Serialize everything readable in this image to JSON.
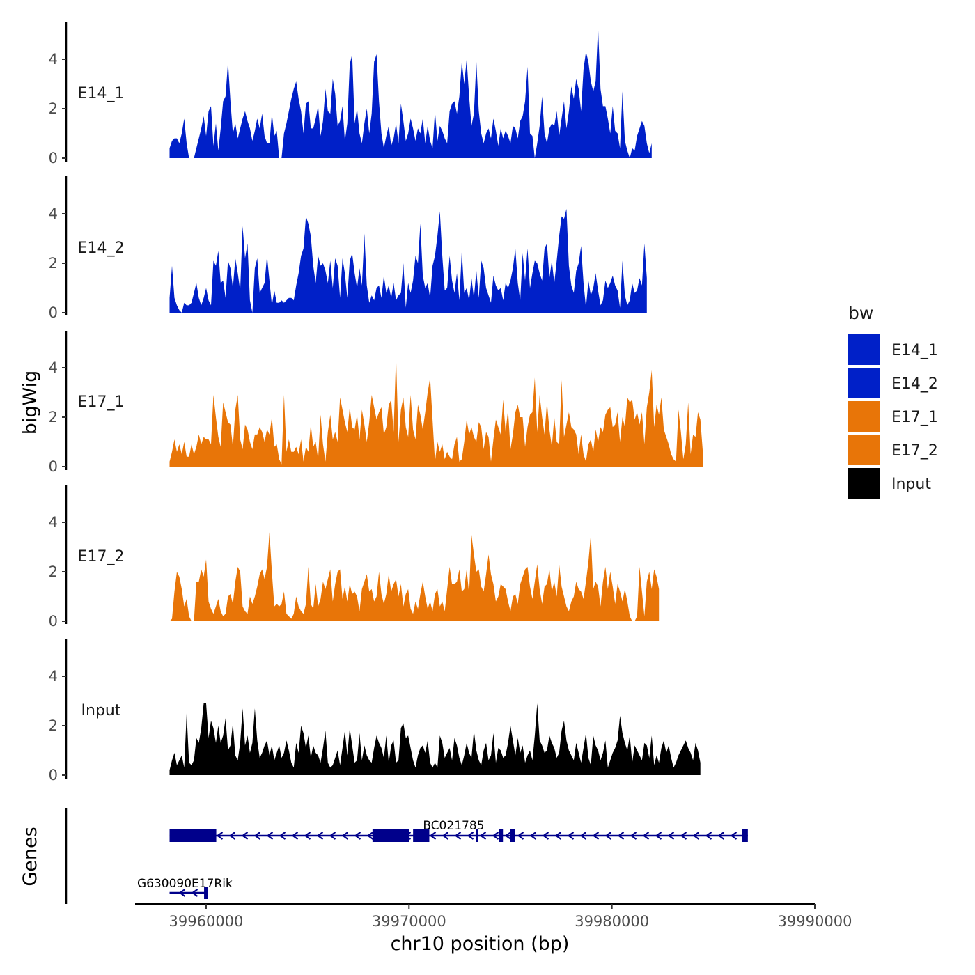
{
  "chart_data": {
    "type": "area",
    "title": "",
    "xlabel": "chr10 position (bp)",
    "ylabel": "bigWig",
    "genes_label": "Genes",
    "xlim": [
      39956500,
      39990000
    ],
    "data_range": [
      39958200,
      39988700
    ],
    "x_ticks": [
      {
        "value": 39960000,
        "label": "39960000"
      },
      {
        "value": 39970000,
        "label": "39970000"
      },
      {
        "value": 39980000,
        "label": "39980000"
      },
      {
        "value": 39990000,
        "label": "39990000"
      }
    ],
    "ylim": [
      0,
      5.4
    ],
    "y_ticks": [
      {
        "value": 0,
        "label": "0"
      },
      {
        "value": 2,
        "label": "2"
      },
      {
        "value": 4,
        "label": "4"
      }
    ],
    "legend": {
      "title": "bw",
      "position": "right",
      "entries": [
        {
          "label": "E14_1",
          "color": "#0020C8"
        },
        {
          "label": "E14_2",
          "color": "#0020C8"
        },
        {
          "label": "E17_1",
          "color": "#E87508"
        },
        {
          "label": "E17_2",
          "color": "#E87508"
        },
        {
          "label": "Input",
          "color": "#000000"
        }
      ]
    },
    "series": [
      {
        "name": "E14_1",
        "color": "#0020C8",
        "x_start": 39958200,
        "step": 120,
        "values": [
          0.4,
          0.7,
          0.8,
          0.8,
          0.6,
          1.0,
          1.6,
          0.6,
          0,
          0,
          0,
          0.4,
          0.8,
          1.2,
          1.7,
          0.9,
          1.9,
          2.1,
          0.5,
          1.4,
          0.3,
          1.2,
          2.3,
          2.5,
          3.9,
          2.3,
          1.0,
          1.4,
          0.8,
          1.2,
          1.6,
          1.9,
          1.5,
          1.2,
          0.7,
          1.1,
          1.6,
          1.2,
          1.8,
          0.9,
          0.6,
          0.6,
          1.8,
          0.9,
          1.1,
          0,
          0,
          1.0,
          1.4,
          1.9,
          2.4,
          2.8,
          3.1,
          2.4,
          1.9,
          1.0,
          2.2,
          2.3,
          1.2,
          1.2,
          1.6,
          2.1,
          0.9,
          1.5,
          2.8,
          1.9,
          1.8,
          3.2,
          2.6,
          1.3,
          1.5,
          2.1,
          0.7,
          1.4,
          3.8,
          4.2,
          1.4,
          2.0,
          1.0,
          0.6,
          1.4,
          2.0,
          1.0,
          1.8,
          3.9,
          4.2,
          2.3,
          1.0,
          0.4,
          0.9,
          1.3,
          0.5,
          0.8,
          1.4,
          0.6,
          2.2,
          1.5,
          0.7,
          1.0,
          1.6,
          1.2,
          0.7,
          1.2,
          1.0,
          1.6,
          0.6,
          1.3,
          0.7,
          0.4,
          1.9,
          0.7,
          1.3,
          1.1,
          0.8,
          0.6,
          1.9,
          2.2,
          2.3,
          1.8,
          2.5,
          3.9,
          3.0,
          4.0,
          2.5,
          1.3,
          1.8,
          3.9,
          1.9,
          1.0,
          0.6,
          1.0,
          1.2,
          0.8,
          1.6,
          1.1,
          0.5,
          1.2,
          0.8,
          1.1,
          0.9,
          0.6,
          1.3,
          1.2,
          0.8,
          1.5,
          1.7,
          2.3,
          3.7,
          1.0,
          0.9,
          0,
          0.6,
          1.3,
          2.5,
          1.0,
          0.6,
          1.2,
          1.4,
          1.3,
          1.9,
          0.9,
          1.6,
          2.3,
          1.2,
          1.9,
          2.9,
          2.4,
          3.2,
          2.8,
          1.9,
          3.6,
          4.3,
          3.9,
          3.1,
          2.7,
          3.1,
          5.3,
          2.8,
          2.1,
          2.1,
          1.6,
          1.0,
          2.1,
          1.1,
          1.0,
          0.4,
          2.7,
          0.7,
          0.3,
          0,
          0.4,
          0.3,
          0.9,
          1.2,
          1.5,
          1.3,
          0.6,
          0.2,
          0.6
        ]
      },
      {
        "name": "E14_2",
        "color": "#0020C8",
        "x_start": 39958200,
        "step": 120,
        "values": [
          0.6,
          1.9,
          0.6,
          0.3,
          0.1,
          0,
          0.4,
          0.3,
          0.3,
          0.4,
          0.8,
          1.2,
          0.6,
          0.3,
          0.6,
          1.0,
          0.5,
          0.3,
          2.1,
          1.9,
          2.5,
          1.2,
          1.3,
          0.6,
          2.1,
          1.8,
          1.0,
          2.2,
          1.6,
          0.9,
          3.5,
          2.2,
          2.8,
          0.5,
          0,
          1.8,
          2.2,
          0.8,
          1.0,
          1.2,
          2.3,
          1.3,
          0.3,
          0.9,
          0.4,
          0.4,
          0.5,
          0.4,
          0.5,
          0.6,
          0.6,
          0.5,
          1.1,
          1.6,
          2.3,
          2.6,
          3.9,
          3.6,
          3.1,
          1.9,
          1.2,
          2.3,
          1.9,
          2.0,
          1.7,
          1.2,
          2.1,
          1.0,
          2.2,
          1.9,
          0.6,
          2.2,
          1.6,
          0.6,
          2.1,
          2.4,
          1.6,
          1.0,
          1.8,
          1.1,
          3.2,
          1.1,
          0.4,
          0.7,
          0.5,
          1.0,
          1.1,
          0.6,
          1.5,
          0.8,
          1.1,
          0.6,
          1.2,
          0.5,
          0.7,
          0.8,
          2.0,
          0.2,
          1.2,
          0.8,
          1.3,
          2.3,
          2.0,
          3.6,
          1.5,
          1.0,
          1.2,
          0.6,
          1.9,
          2.3,
          3.1,
          4.1,
          2.3,
          0.9,
          1.0,
          2.3,
          1.3,
          0.8,
          1.6,
          0.5,
          2.5,
          0.8,
          1.0,
          0.5,
          1.4,
          0.6,
          1.7,
          0.6,
          2.1,
          1.8,
          1.0,
          0.7,
          0.4,
          1.5,
          1.1,
          0.9,
          1.0,
          0.5,
          1.2,
          1.0,
          1.3,
          1.8,
          2.6,
          1.2,
          0.5,
          2.4,
          1.3,
          2.6,
          1.0,
          1.6,
          2.1,
          2.0,
          1.6,
          1.3,
          2.6,
          2.8,
          1.4,
          2.1,
          1.2,
          2.1,
          3.1,
          3.9,
          3.8,
          4.2,
          1.9,
          1.1,
          0.8,
          1.7,
          2.0,
          2.7,
          1.2,
          0.2,
          1.3,
          0.7,
          1.0,
          1.6,
          0.9,
          0.3,
          0.5,
          1.3,
          1.0,
          1.2,
          1.5,
          1.1,
          0.9,
          0.2,
          2.1,
          0.7,
          0.3,
          0.5,
          1.2,
          0.8,
          0.9,
          1.4,
          1.1,
          2.8,
          1.4
        ]
      },
      {
        "name": "E17_1",
        "color": "#E87508",
        "x_start": 39958200,
        "step": 120,
        "values": [
          0.2,
          0.6,
          1.1,
          0.6,
          0.9,
          0.5,
          1.0,
          0.4,
          0.4,
          0.9,
          0.5,
          0.8,
          1.3,
          0.9,
          1.2,
          1.1,
          1.1,
          0.9,
          2.9,
          2.0,
          1.2,
          0.8,
          2.6,
          2.2,
          1.8,
          1.7,
          0.8,
          2.3,
          2.9,
          1.1,
          0.7,
          1.7,
          1.5,
          1.0,
          0.7,
          1.3,
          1.3,
          1.6,
          1.4,
          1.0,
          1.5,
          1.3,
          2.0,
          0.8,
          0.9,
          0.3,
          0.1,
          2.9,
          0.6,
          1.1,
          0.6,
          0.6,
          0.8,
          0.5,
          1.1,
          0.2,
          0.8,
          0.6,
          1.7,
          0.8,
          1.0,
          0.3,
          2.1,
          0.9,
          0.2,
          1.4,
          2.1,
          1.1,
          1.4,
          1.0,
          2.8,
          2.3,
          1.8,
          1.4,
          2.4,
          1.6,
          1.5,
          2.1,
          1.1,
          2.3,
          1.7,
          1.0,
          1.8,
          2.9,
          2.4,
          1.9,
          2.2,
          2.4,
          1.3,
          1.6,
          2.5,
          2.7,
          1.4,
          4.5,
          1.0,
          2.3,
          2.8,
          1.6,
          1.2,
          2.9,
          1.5,
          1.1,
          2.5,
          2.1,
          1.5,
          2.2,
          3.0,
          3.6,
          1.9,
          0.2,
          1.0,
          0.6,
          0.9,
          0.3,
          0.6,
          0.4,
          0.3,
          0.9,
          1.2,
          0.2,
          0.3,
          1.0,
          1.9,
          1.3,
          1.6,
          1.2,
          1.0,
          1.8,
          1.6,
          0.7,
          1.4,
          1.2,
          0.2,
          1.1,
          1.9,
          1.6,
          1.3,
          2.7,
          1.4,
          2.3,
          0.7,
          1.3,
          2.2,
          2.5,
          2.0,
          2.0,
          0.8,
          1.6,
          2.1,
          2.2,
          3.6,
          1.4,
          2.9,
          2.0,
          1.3,
          2.6,
          1.5,
          0.8,
          2.0,
          1.0,
          0.9,
          3.5,
          1.2,
          1.7,
          2.2,
          1.6,
          1.5,
          1.3,
          0.5,
          1.3,
          0.5,
          0.2,
          0.9,
          1.1,
          0.6,
          1.5,
          1.0,
          1.6,
          1.4,
          2.1,
          2.3,
          2.4,
          1.6,
          1.7,
          2.2,
          1.0,
          2.0,
          1.6,
          2.8,
          2.6,
          2.7,
          1.9,
          2.2,
          1.7,
          2.2,
          0.9,
          2.4,
          3.0,
          3.9,
          1.6,
          2.5,
          2.1,
          2.8,
          1.5,
          1.2,
          0.9,
          0.5,
          0.3,
          0.2,
          2.3,
          1.4,
          0.3,
          0.9,
          2.6,
          0.5,
          1.3,
          1.2,
          2.2,
          1.9,
          0.6
        ]
      },
      {
        "name": "E17_2",
        "color": "#E87508",
        "x_start": 39958200,
        "step": 120,
        "values": [
          0,
          0.1,
          1.2,
          2.0,
          1.8,
          1.3,
          0.6,
          0.9,
          0.2,
          0,
          0,
          1.6,
          1.6,
          2.1,
          1.8,
          2.5,
          0.8,
          0.5,
          0.3,
          0.6,
          0.9,
          0.4,
          0.2,
          0.3,
          1.0,
          1.1,
          0.7,
          1.6,
          2.2,
          2.0,
          0.6,
          0.4,
          0.3,
          1.0,
          0.7,
          1.0,
          1.4,
          1.9,
          2.1,
          1.7,
          2.2,
          3.6,
          2.0,
          0.6,
          0.7,
          0.6,
          0.7,
          1.2,
          0.3,
          0.2,
          0.1,
          0.3,
          1.0,
          0.6,
          0.4,
          0.3,
          0.7,
          2.2,
          0.7,
          0.5,
          1.5,
          0.6,
          0.9,
          1.6,
          1.3,
          1.7,
          2.1,
          0.8,
          1.5,
          2.0,
          2.1,
          0.9,
          1.4,
          0.8,
          1.5,
          1.1,
          1.2,
          1.0,
          0.4,
          1.3,
          1.6,
          1.9,
          1.2,
          1.3,
          0.8,
          1.0,
          2.0,
          1.1,
          0.7,
          1.1,
          1.9,
          1.2,
          1.5,
          1.7,
          1.0,
          1.5,
          0.6,
          1.1,
          1.3,
          0.5,
          0.3,
          0.8,
          0.5,
          1.1,
          1.6,
          1.0,
          0.5,
          0.8,
          0.4,
          1.1,
          1.3,
          0.6,
          0.8,
          0.4,
          1.3,
          2.2,
          1.5,
          1.5,
          1.6,
          2.1,
          1.2,
          1.3,
          2.1,
          1.1,
          3.5,
          2.7,
          2.0,
          2.1,
          1.4,
          1.2,
          1.9,
          2.7,
          1.9,
          1.5,
          0.8,
          1.0,
          1.5,
          1.4,
          1.3,
          0.8,
          0.4,
          1.0,
          1.1,
          0.7,
          1.5,
          1.8,
          2.1,
          2.2,
          1.4,
          0.9,
          1.6,
          2.3,
          1.3,
          0.7,
          1.4,
          1.5,
          2.1,
          1.2,
          1.6,
          1.0,
          2.3,
          1.4,
          1.0,
          0.6,
          0.4,
          0.8,
          1.0,
          1.6,
          1.3,
          1.2,
          0.9,
          1.6,
          2.4,
          3.5,
          1.3,
          1.6,
          1.4,
          0.6,
          1.6,
          2.2,
          1.3,
          2.0,
          1.4,
          0.7,
          1.5,
          1.2,
          0.8,
          1.3,
          0.8,
          0.2,
          0,
          0,
          0.2,
          2.2,
          1.2,
          0.2,
          1.6,
          2.0,
          1.3,
          2.1,
          1.8,
          1.3
        ]
      },
      {
        "name": "Input",
        "color": "#000000",
        "x_start": 39958200,
        "step": 120,
        "values": [
          0.2,
          0.6,
          0.9,
          0.4,
          0.6,
          0.8,
          0.3,
          2.5,
          0.5,
          0.4,
          0.6,
          1.5,
          1.3,
          1.9,
          2.9,
          2.9,
          1.5,
          2.2,
          1.9,
          1.3,
          2.0,
          1.3,
          1.6,
          2.3,
          1.0,
          1.2,
          2.1,
          0.8,
          0.6,
          1.3,
          2.7,
          1.2,
          1.6,
          0.9,
          1.3,
          2.7,
          1.4,
          0.7,
          0.9,
          1.2,
          1.4,
          0.8,
          1.2,
          0.6,
          0.9,
          1.2,
          0.7,
          0.9,
          1.4,
          1.0,
          0.5,
          0.3,
          1.3,
          0.9,
          2.0,
          1.7,
          1.1,
          1.6,
          0.7,
          1.2,
          0.9,
          0.8,
          0.5,
          1.1,
          1.8,
          0.5,
          0.3,
          0.4,
          0.7,
          1.0,
          0.4,
          1.1,
          1.8,
          0.8,
          1.9,
          1.2,
          0.5,
          0.6,
          1.7,
          0.6,
          1.2,
          0.8,
          0.6,
          0.5,
          1.1,
          1.6,
          1.3,
          1.1,
          0.7,
          1.6,
          0.5,
          1.2,
          1.4,
          0.5,
          0.6,
          1.9,
          2.1,
          1.5,
          1.6,
          1.1,
          0.6,
          0.3,
          0.8,
          1.1,
          1.2,
          0.9,
          1.4,
          0.5,
          0.3,
          0.5,
          0.3,
          1.6,
          1.3,
          0.7,
          0.9,
          1.1,
          0.6,
          1.5,
          1.2,
          0.7,
          0.4,
          0.8,
          1.3,
          0.9,
          0.7,
          1.8,
          1.0,
          0.6,
          0.4,
          1.0,
          1.3,
          0.6,
          0.8,
          1.7,
          0.5,
          1.1,
          1.0,
          0.7,
          0.8,
          1.3,
          2.0,
          1.4,
          0.8,
          1.5,
          0.9,
          1.2,
          0.5,
          0.8,
          1.0,
          0.6,
          1.6,
          2.9,
          1.4,
          1.2,
          0.9,
          1.0,
          1.6,
          1.3,
          1.1,
          0.7,
          0.9,
          1.8,
          2.2,
          1.4,
          1.0,
          0.8,
          0.6,
          1.3,
          0.9,
          0.5,
          1.1,
          1.7,
          0.7,
          0.4,
          1.6,
          1.2,
          1.0,
          0.6,
          0.9,
          1.4,
          0.3,
          0.6,
          0.9,
          1.1,
          1.4,
          2.4,
          1.7,
          1.3,
          1.0,
          1.6,
          0.5,
          1.2,
          1.0,
          0.8,
          0.6,
          1.3,
          1.2,
          0.7,
          1.6,
          0.4,
          0.8,
          0.5,
          1.1,
          1.4,
          0.9,
          1.2,
          0.7,
          0.3,
          0.5,
          0.8,
          1.0,
          1.2,
          1.4,
          1.1,
          0.9,
          0.6,
          1.3,
          1.0,
          0.5
        ]
      }
    ],
    "genes": [
      {
        "name": "BC021785",
        "color": "#00008B",
        "start": 39958200,
        "end": 39986700,
        "row": 1,
        "exons": [
          [
            39958200,
            39960500
          ],
          [
            39968200,
            39970000
          ],
          [
            39970200,
            39971000
          ],
          [
            39973300,
            39973380
          ],
          [
            39974450,
            39974630
          ],
          [
            39975000,
            39975220
          ],
          [
            39986400,
            39986700
          ]
        ]
      },
      {
        "name": "G630090E17Rik",
        "color": "#00008B",
        "start": 39958200,
        "end": 39960100,
        "row": 2,
        "exons": [
          [
            39959900,
            39960100
          ]
        ]
      }
    ]
  }
}
